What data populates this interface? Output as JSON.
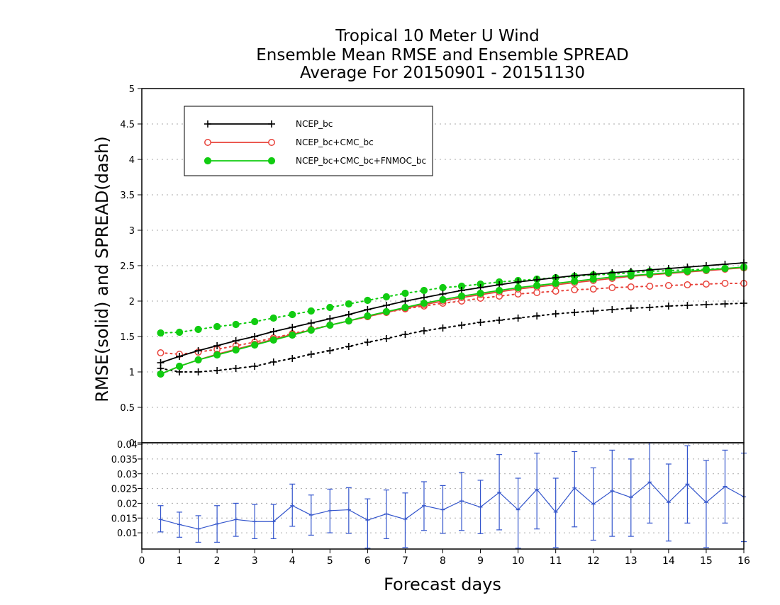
{
  "title_lines": [
    "Tropical 10 Meter U Wind",
    "Ensemble Mean RMSE and Ensemble SPREAD",
    "Average For 20150901 - 20151130"
  ],
  "colors": {
    "ncep": "#000000",
    "ncep_cmc": "#e8423a",
    "ncep_cmc_fnmoc": "#11cc11",
    "diff": "#3355cc",
    "grid": "#aaaaaa"
  },
  "chart_data": [
    {
      "type": "line",
      "title": "Tropical 10 Meter U Wind / Ensemble Mean RMSE and Ensemble SPREAD / Average For 20150901 - 20151130",
      "xlabel": "Forecast days",
      "ylabel": "RMSE(solid)  and  SPREAD(dash)",
      "xlim": [
        0,
        16
      ],
      "ylim": [
        0,
        5
      ],
      "y_ticks": [
        "0",
        "0.5",
        "1",
        "1.5",
        "2",
        "2.5",
        "3",
        "3.5",
        "4",
        "4.5",
        "5"
      ],
      "grid": "horizontal dotted",
      "legend_position": "top-left",
      "x": [
        0.5,
        1,
        1.5,
        2,
        2.5,
        3,
        3.5,
        4,
        4.5,
        5,
        5.5,
        6,
        6.5,
        7,
        7.5,
        8,
        8.5,
        9,
        9.5,
        10,
        10.5,
        11,
        11.5,
        12,
        12.5,
        13,
        13.5,
        14,
        14.5,
        15,
        15.5,
        16
      ],
      "series": [
        {
          "name": "NCEP_bc",
          "kind": "RMSE",
          "style": "solid",
          "marker": "plus",
          "values": [
            1.13,
            1.22,
            1.3,
            1.37,
            1.44,
            1.5,
            1.57,
            1.63,
            1.69,
            1.75,
            1.81,
            1.88,
            1.94,
            2.0,
            2.05,
            2.1,
            2.15,
            2.19,
            2.23,
            2.27,
            2.3,
            2.33,
            2.36,
            2.38,
            2.4,
            2.42,
            2.44,
            2.46,
            2.48,
            2.5,
            2.52,
            2.54
          ]
        },
        {
          "name": "NCEP_bc",
          "kind": "SPREAD",
          "style": "dotted",
          "marker": "plus",
          "values": [
            1.05,
            1.0,
            1.0,
            1.02,
            1.05,
            1.08,
            1.14,
            1.19,
            1.25,
            1.3,
            1.36,
            1.42,
            1.47,
            1.53,
            1.58,
            1.62,
            1.66,
            1.7,
            1.73,
            1.76,
            1.79,
            1.82,
            1.84,
            1.86,
            1.88,
            1.9,
            1.91,
            1.93,
            1.94,
            1.95,
            1.96,
            1.97
          ]
        },
        {
          "name": "NCEP_bc+CMC_bc",
          "kind": "RMSE",
          "style": "solid",
          "marker": "open-circle",
          "values": [
            0.97,
            1.08,
            1.17,
            1.25,
            1.32,
            1.39,
            1.46,
            1.53,
            1.59,
            1.66,
            1.72,
            1.78,
            1.84,
            1.9,
            1.95,
            2.0,
            2.05,
            2.09,
            2.13,
            2.17,
            2.2,
            2.23,
            2.26,
            2.29,
            2.32,
            2.35,
            2.37,
            2.39,
            2.41,
            2.43,
            2.45,
            2.47
          ]
        },
        {
          "name": "NCEP_bc+CMC_bc",
          "kind": "SPREAD",
          "style": "dotted",
          "marker": "open-circle",
          "values": [
            1.27,
            1.25,
            1.28,
            1.32,
            1.37,
            1.42,
            1.48,
            1.54,
            1.6,
            1.66,
            1.72,
            1.78,
            1.84,
            1.89,
            1.93,
            1.97,
            2.0,
            2.04,
            2.07,
            2.1,
            2.12,
            2.14,
            2.16,
            2.17,
            2.19,
            2.2,
            2.21,
            2.22,
            2.23,
            2.24,
            2.25,
            2.25
          ]
        },
        {
          "name": "NCEP_bc+CMC_bc+FNMOC_bc",
          "kind": "RMSE",
          "style": "solid",
          "marker": "filled-circle",
          "values": [
            0.97,
            1.08,
            1.17,
            1.24,
            1.31,
            1.38,
            1.45,
            1.52,
            1.59,
            1.66,
            1.72,
            1.79,
            1.85,
            1.91,
            1.97,
            2.02,
            2.07,
            2.11,
            2.15,
            2.19,
            2.22,
            2.25,
            2.28,
            2.31,
            2.34,
            2.36,
            2.38,
            2.4,
            2.42,
            2.44,
            2.46,
            2.48
          ]
        },
        {
          "name": "NCEP_bc+CMC_bc+FNMOC_bc",
          "kind": "SPREAD",
          "style": "dotted",
          "marker": "filled-circle",
          "values": [
            1.55,
            1.56,
            1.6,
            1.64,
            1.67,
            1.71,
            1.76,
            1.81,
            1.86,
            1.91,
            1.96,
            2.01,
            2.06,
            2.11,
            2.15,
            2.19,
            2.21,
            2.24,
            2.27,
            2.29,
            2.31,
            2.33,
            2.35,
            2.37,
            2.38,
            2.4,
            2.42,
            2.43,
            2.44,
            2.45,
            2.46,
            2.47
          ]
        }
      ]
    },
    {
      "type": "line",
      "xlabel": "Forecast days",
      "xlim": [
        0,
        16
      ],
      "ylim": [
        0.0045,
        0.0405
      ],
      "x_ticks": [
        "0",
        "1",
        "2",
        "3",
        "4",
        "5",
        "6",
        "7",
        "8",
        "9",
        "10",
        "11",
        "12",
        "13",
        "14",
        "15",
        "16"
      ],
      "y_ticks": [
        "0.01",
        "0.015",
        "0.02",
        "0.025",
        "0.03",
        "0.035",
        "0.04"
      ],
      "grid": "horizontal dotted",
      "error_bars": true,
      "x": [
        0.5,
        1,
        1.5,
        2,
        2.5,
        3,
        3.5,
        4,
        4.5,
        5,
        5.5,
        6,
        6.5,
        7,
        7.5,
        8,
        8.5,
        9,
        9.5,
        10,
        10.5,
        11,
        11.5,
        12,
        12.5,
        13,
        13.5,
        14,
        14.5,
        15,
        15.5,
        16
      ],
      "values": [
        0.0145,
        0.0128,
        0.0113,
        0.013,
        0.0145,
        0.0138,
        0.0138,
        0.0192,
        0.016,
        0.0175,
        0.0178,
        0.0143,
        0.0164,
        0.0146,
        0.0192,
        0.0178,
        0.0208,
        0.0187,
        0.0237,
        0.0178,
        0.0247,
        0.017,
        0.0252,
        0.0197,
        0.0242,
        0.022,
        0.0272,
        0.0203,
        0.0265,
        0.0203,
        0.0257,
        0.0222
      ],
      "lower": [
        0.0103,
        0.0085,
        0.0068,
        0.0068,
        0.0088,
        0.008,
        0.008,
        0.0122,
        0.0092,
        0.01,
        0.0098,
        0.0048,
        0.008,
        0.005,
        0.0108,
        0.0098,
        0.0108,
        0.0097,
        0.011,
        0.0048,
        0.0113,
        0.005,
        0.012,
        0.0075,
        0.0088,
        0.0088,
        0.0133,
        0.0072,
        0.0133,
        0.005,
        0.0133,
        0.007
      ],
      "upper": [
        0.0192,
        0.017,
        0.0158,
        0.0192,
        0.02,
        0.0196,
        0.0196,
        0.0265,
        0.0228,
        0.0248,
        0.0253,
        0.0215,
        0.0245,
        0.0235,
        0.0273,
        0.026,
        0.0305,
        0.0278,
        0.0365,
        0.0285,
        0.037,
        0.0285,
        0.0375,
        0.032,
        0.038,
        0.035,
        0.0405,
        0.0333,
        0.0395,
        0.0345,
        0.038,
        0.037
      ]
    }
  ]
}
